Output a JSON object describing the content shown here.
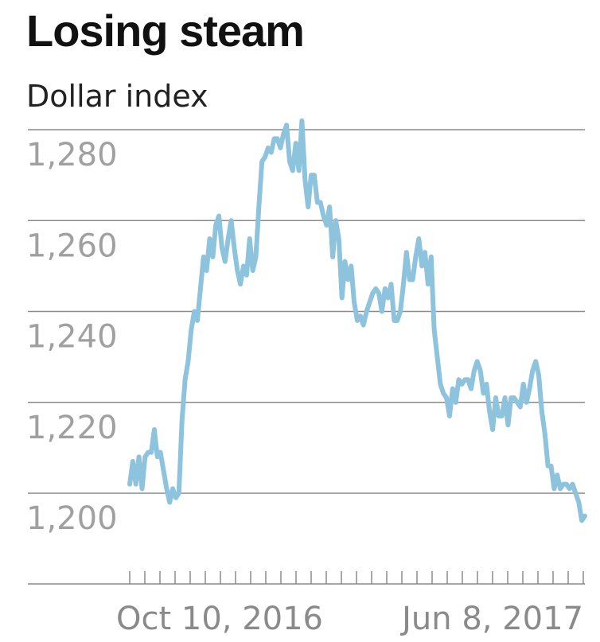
{
  "header": {
    "title": "Losing steam",
    "subtitle": "Dollar index"
  },
  "colors": {
    "line": "#8dc3dc",
    "grid": "#8a8a8a",
    "tick_label": "#a0a0a0",
    "axis_label": "#8a8a8a",
    "title": "#111111"
  },
  "chart_data": {
    "type": "line",
    "title": "Losing steam",
    "subtitle": "Dollar index",
    "xlabel": "",
    "ylabel": "",
    "ylim": [
      1187,
      1289
    ],
    "yticks": [
      1200,
      1220,
      1240,
      1260,
      1280
    ],
    "ytick_labels": [
      "1,200",
      "1,220",
      "1,240",
      "1,260",
      "1,280"
    ],
    "xtick_labels": [
      {
        "label": "Oct 10, 2016",
        "index": 0
      },
      {
        "label": "Jun 8, 2017",
        "index": 345
      }
    ],
    "grid": true,
    "legend": "none",
    "series": [
      {
        "values": [
          1202,
          1207,
          1202,
          1208,
          1201,
          1208,
          1209,
          1209,
          1214,
          1208,
          1209,
          1205,
          1201,
          1198,
          1201,
          1199,
          1200,
          1216,
          1225,
          1229,
          1236,
          1240,
          1238,
          1245,
          1252,
          1249,
          1256,
          1252,
          1259,
          1261,
          1254,
          1251,
          1256,
          1260,
          1254,
          1249,
          1246,
          1250,
          1248,
          1256,
          1249,
          1252,
          1263,
          1273,
          1274,
          1276,
          1275,
          1278,
          1278,
          1276,
          1279,
          1281,
          1273,
          1271,
          1277,
          1271,
          1282,
          1269,
          1263,
          1270,
          1270,
          1264,
          1264,
          1261,
          1259,
          1263,
          1252,
          1260,
          1256,
          1243,
          1251,
          1247,
          1250,
          1242,
          1238,
          1239,
          1237,
          1240,
          1242,
          1244,
          1245,
          1244,
          1240,
          1245,
          1243,
          1246,
          1238,
          1238,
          1240,
          1246,
          1253,
          1247,
          1247,
          1252,
          1256,
          1250,
          1253,
          1246,
          1252,
          1236,
          1230,
          1224,
          1222,
          1221,
          1217,
          1223,
          1220,
          1225,
          1224,
          1225,
          1225,
          1223,
          1227,
          1229,
          1227,
          1222,
          1224,
          1218,
          1214,
          1221,
          1217,
          1217,
          1221,
          1215,
          1221,
          1221,
          1220,
          1219,
          1224,
          1220,
          1223,
          1227,
          1229,
          1226,
          1218,
          1213,
          1206,
          1206,
          1201,
          1204,
          1201,
          1202,
          1202,
          1201,
          1202,
          1200,
          1198,
          1194,
          1195
        ]
      }
    ]
  }
}
